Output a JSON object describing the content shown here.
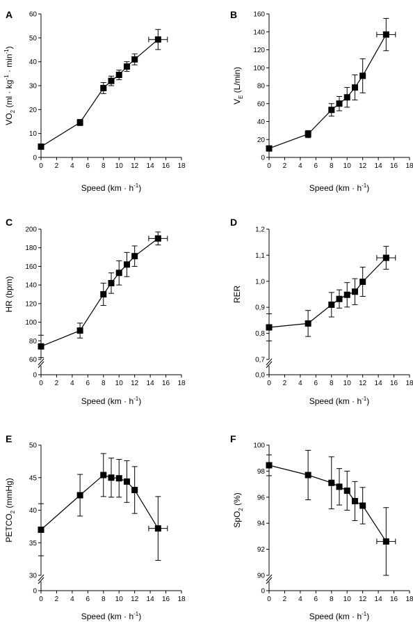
{
  "chart_data": [
    {
      "type": "scatter",
      "panel_label": "A",
      "ylabel": "VO",
      "ylabel_sub": "2",
      "ylabel_rest": " (ml · kg",
      "ylabel_sup1": "-1",
      "ylabel_mid": " · min",
      "ylabel_sup2": "-1",
      "ylabel_end": ")",
      "xlabel": "Speed (km · h",
      "xlabel_sup": "-1",
      "xlabel_end": ")",
      "xlim": [
        0,
        18
      ],
      "ylim": [
        0,
        60
      ],
      "xticks": [
        "0",
        "2",
        "4",
        "6",
        "8",
        "10",
        "12",
        "14",
        "16",
        "18"
      ],
      "xtick_values": [
        0,
        2,
        4,
        6,
        8,
        10,
        12,
        14,
        16,
        18
      ],
      "yticks": [
        "0",
        "10",
        "20",
        "30",
        "40",
        "50",
        "60"
      ],
      "ytick_values": [
        0,
        10,
        20,
        30,
        40,
        50,
        60
      ],
      "axis_break": false,
      "points": [
        {
          "x": 0,
          "y": 4.5,
          "yerr": 0.7,
          "xerr": 0
        },
        {
          "x": 5,
          "y": 14.6,
          "yerr": 1.3,
          "xerr": 0
        },
        {
          "x": 8,
          "y": 29,
          "yerr": 2.3,
          "xerr": 0
        },
        {
          "x": 9,
          "y": 32,
          "yerr": 2.0,
          "xerr": 0
        },
        {
          "x": 10,
          "y": 34.5,
          "yerr": 2.0,
          "xerr": 0
        },
        {
          "x": 11,
          "y": 38,
          "yerr": 2.0,
          "xerr": 0
        },
        {
          "x": 12,
          "y": 41,
          "yerr": 2.3,
          "xerr": 0
        },
        {
          "x": 15,
          "y": 49.3,
          "yerr": 4.2,
          "xerr": 1.2
        }
      ]
    },
    {
      "type": "scatter",
      "panel_label": "B",
      "ylabel": "V",
      "ylabel_sub": "E",
      "ylabel_rest": " (L/min)",
      "ylabel_sup1": "",
      "ylabel_mid": "",
      "ylabel_sup2": "",
      "ylabel_end": "",
      "xlabel": "Speed (km · h",
      "xlabel_sup": "-1",
      "xlabel_end": ")",
      "xlim": [
        0,
        18
      ],
      "ylim": [
        0,
        160
      ],
      "xticks": [
        "0",
        "2",
        "4",
        "6",
        "8",
        "10",
        "12",
        "14",
        "16",
        "18"
      ],
      "xtick_values": [
        0,
        2,
        4,
        6,
        8,
        10,
        12,
        14,
        16,
        18
      ],
      "yticks": [
        "0",
        "20",
        "40",
        "60",
        "80",
        "100",
        "120",
        "140",
        "160"
      ],
      "ytick_values": [
        0,
        20,
        40,
        60,
        80,
        100,
        120,
        140,
        160
      ],
      "axis_break": false,
      "points": [
        {
          "x": 0,
          "y": 10,
          "yerr": 2,
          "xerr": 0
        },
        {
          "x": 5,
          "y": 26,
          "yerr": 4,
          "xerr": 0
        },
        {
          "x": 8,
          "y": 53,
          "yerr": 7,
          "xerr": 0
        },
        {
          "x": 9,
          "y": 60,
          "yerr": 8,
          "xerr": 0
        },
        {
          "x": 10,
          "y": 67,
          "yerr": 11,
          "xerr": 0
        },
        {
          "x": 11,
          "y": 78,
          "yerr": 14,
          "xerr": 0
        },
        {
          "x": 12,
          "y": 91,
          "yerr": 19,
          "xerr": 0
        },
        {
          "x": 15,
          "y": 137,
          "yerr": 18,
          "xerr": 1.2
        }
      ]
    },
    {
      "type": "scatter",
      "panel_label": "C",
      "ylabel": "HR (bpm)",
      "ylabel_sub": "",
      "ylabel_rest": "",
      "ylabel_sup1": "",
      "ylabel_mid": "",
      "ylabel_sup2": "",
      "ylabel_end": "",
      "xlabel": "Speed (km · h",
      "xlabel_sup": "-1",
      "xlabel_end": ")",
      "xlim": [
        0,
        18
      ],
      "ylim": [
        60,
        200
      ],
      "xticks": [
        "0",
        "2",
        "4",
        "6",
        "8",
        "10",
        "12",
        "14",
        "16",
        "18"
      ],
      "xtick_values": [
        0,
        2,
        4,
        6,
        8,
        10,
        12,
        14,
        16,
        18
      ],
      "yticks": [
        "60",
        "80",
        "100",
        "120",
        "140",
        "160",
        "180",
        "200"
      ],
      "ytick_values": [
        60,
        80,
        100,
        120,
        140,
        160,
        180,
        200
      ],
      "axis_break": true,
      "break_label": "0",
      "points": [
        {
          "x": 0,
          "y": 74,
          "yerr": 12,
          "xerr": 0
        },
        {
          "x": 5,
          "y": 91,
          "yerr": 8,
          "xerr": 0
        },
        {
          "x": 8,
          "y": 130,
          "yerr": 12,
          "xerr": 0
        },
        {
          "x": 9,
          "y": 142,
          "yerr": 11,
          "xerr": 0
        },
        {
          "x": 10,
          "y": 153,
          "yerr": 13,
          "xerr": 0
        },
        {
          "x": 11,
          "y": 162,
          "yerr": 13,
          "xerr": 0
        },
        {
          "x": 12,
          "y": 171,
          "yerr": 11,
          "xerr": 0
        },
        {
          "x": 15,
          "y": 190,
          "yerr": 7,
          "xerr": 1.2
        }
      ]
    },
    {
      "type": "scatter",
      "panel_label": "D",
      "ylabel": "RER",
      "ylabel_sub": "",
      "ylabel_rest": "",
      "ylabel_sup1": "",
      "ylabel_mid": "",
      "ylabel_sup2": "",
      "ylabel_end": "",
      "xlabel": "Speed (km · h",
      "xlabel_sup": "-1",
      "xlabel_end": ")",
      "xlim": [
        0,
        18
      ],
      "ylim": [
        0.7,
        1.2
      ],
      "xticks": [
        "0",
        "2",
        "4",
        "6",
        "8",
        "10",
        "12",
        "14",
        "16",
        "18"
      ],
      "xtick_values": [
        0,
        2,
        4,
        6,
        8,
        10,
        12,
        14,
        16,
        18
      ],
      "yticks": [
        "0,7",
        "0,8",
        "0,9",
        "1,0",
        "1,1",
        "1,2"
      ],
      "ytick_values": [
        0.7,
        0.8,
        0.9,
        1.0,
        1.1,
        1.2
      ],
      "axis_break": true,
      "break_label": "0,0",
      "points": [
        {
          "x": 0,
          "y": 0.823,
          "yerr": 0.052,
          "xerr": 0
        },
        {
          "x": 5,
          "y": 0.838,
          "yerr": 0.05,
          "xerr": 0
        },
        {
          "x": 8,
          "y": 0.91,
          "yerr": 0.047,
          "xerr": 0
        },
        {
          "x": 9,
          "y": 0.932,
          "yerr": 0.035,
          "xerr": 0
        },
        {
          "x": 10,
          "y": 0.948,
          "yerr": 0.047,
          "xerr": 0
        },
        {
          "x": 11,
          "y": 0.96,
          "yerr": 0.05,
          "xerr": 0
        },
        {
          "x": 12,
          "y": 0.998,
          "yerr": 0.056,
          "xerr": 0
        },
        {
          "x": 15,
          "y": 1.09,
          "yerr": 0.044,
          "xerr": 1.2
        }
      ]
    },
    {
      "type": "scatter",
      "panel_label": "E",
      "ylabel": "PETCO",
      "ylabel_sub": "2",
      "ylabel_rest": " (mmHg)",
      "ylabel_sup1": "",
      "ylabel_mid": "",
      "ylabel_sup2": "",
      "ylabel_end": "",
      "xlabel": "Speed (km · h",
      "xlabel_sup": "-1",
      "xlabel_end": ")",
      "xlim": [
        0,
        18
      ],
      "ylim": [
        30,
        50
      ],
      "xticks": [
        "0",
        "2",
        "4",
        "6",
        "8",
        "10",
        "12",
        "14",
        "16",
        "18"
      ],
      "xtick_values": [
        0,
        2,
        4,
        6,
        8,
        10,
        12,
        14,
        16,
        18
      ],
      "yticks": [
        "30",
        "35",
        "40",
        "45",
        "50"
      ],
      "ytick_values": [
        30,
        35,
        40,
        45,
        50
      ],
      "axis_break": true,
      "break_label": "0",
      "points": [
        {
          "x": 0,
          "y": 37,
          "yerr": 4,
          "xerr": 0
        },
        {
          "x": 5,
          "y": 42.3,
          "yerr": 3.2,
          "xerr": 0
        },
        {
          "x": 8,
          "y": 45.4,
          "yerr": 3.3,
          "xerr": 0
        },
        {
          "x": 9,
          "y": 45,
          "yerr": 3,
          "xerr": 0
        },
        {
          "x": 10,
          "y": 44.9,
          "yerr": 2.9,
          "xerr": 0
        },
        {
          "x": 11,
          "y": 44.4,
          "yerr": 3.2,
          "xerr": 0
        },
        {
          "x": 12,
          "y": 43.1,
          "yerr": 3.6,
          "xerr": 0
        },
        {
          "x": 15,
          "y": 37.2,
          "yerr": 4.9,
          "xerr": 1.2
        }
      ]
    },
    {
      "type": "scatter",
      "panel_label": "F",
      "ylabel": "SpO",
      "ylabel_sub": "2",
      "ylabel_rest": " (%)",
      "ylabel_sup1": "",
      "ylabel_mid": "",
      "ylabel_sup2": "",
      "ylabel_end": "",
      "xlabel": "Speed (km · h",
      "xlabel_sup": "-1",
      "xlabel_end": ")",
      "xlim": [
        0,
        18
      ],
      "ylim": [
        90,
        100
      ],
      "xticks": [
        "0",
        "2",
        "4",
        "6",
        "8",
        "10",
        "12",
        "14",
        "16",
        "18"
      ],
      "xtick_values": [
        0,
        2,
        4,
        6,
        8,
        10,
        12,
        14,
        16,
        18
      ],
      "yticks": [
        "90",
        "92",
        "94",
        "96",
        "98",
        "100"
      ],
      "ytick_values": [
        90,
        92,
        94,
        96,
        98,
        100
      ],
      "axis_break": true,
      "break_label": "0",
      "points": [
        {
          "x": 0,
          "y": 98.45,
          "yerr": 0.8,
          "xerr": 0
        },
        {
          "x": 5,
          "y": 97.7,
          "yerr": 1.9,
          "xerr": 0
        },
        {
          "x": 8,
          "y": 97.1,
          "yerr": 2.0,
          "xerr": 0
        },
        {
          "x": 9,
          "y": 96.8,
          "yerr": 1.4,
          "xerr": 0
        },
        {
          "x": 10,
          "y": 96.5,
          "yerr": 1.5,
          "xerr": 0
        },
        {
          "x": 11,
          "y": 95.7,
          "yerr": 1.5,
          "xerr": 0
        },
        {
          "x": 12,
          "y": 95.35,
          "yerr": 1.4,
          "xerr": 0
        },
        {
          "x": 15,
          "y": 92.6,
          "yerr": 2.6,
          "xerr": 1.2
        }
      ]
    }
  ]
}
